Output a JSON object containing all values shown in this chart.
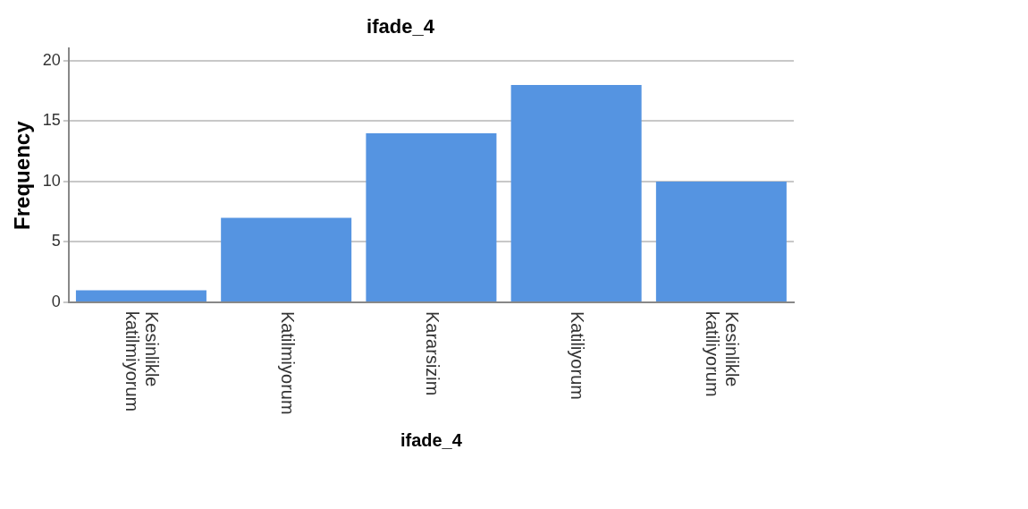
{
  "chart_data": {
    "type": "bar",
    "title": "ifade_4",
    "xlabel": "ifade_4",
    "ylabel": "Frequency",
    "categories": [
      "Kesinlikle katilmiyorum",
      "Katilmiyorum",
      "Kararsizim",
      "Katiliyorum",
      "Kesinlikle katiliyorum"
    ],
    "values": [
      1,
      7,
      14,
      18,
      10
    ],
    "color": "#5594e1",
    "ylim": [
      0,
      21
    ],
    "yticks": [
      0,
      5,
      10,
      15,
      20
    ],
    "grid": "y",
    "legend": false
  }
}
